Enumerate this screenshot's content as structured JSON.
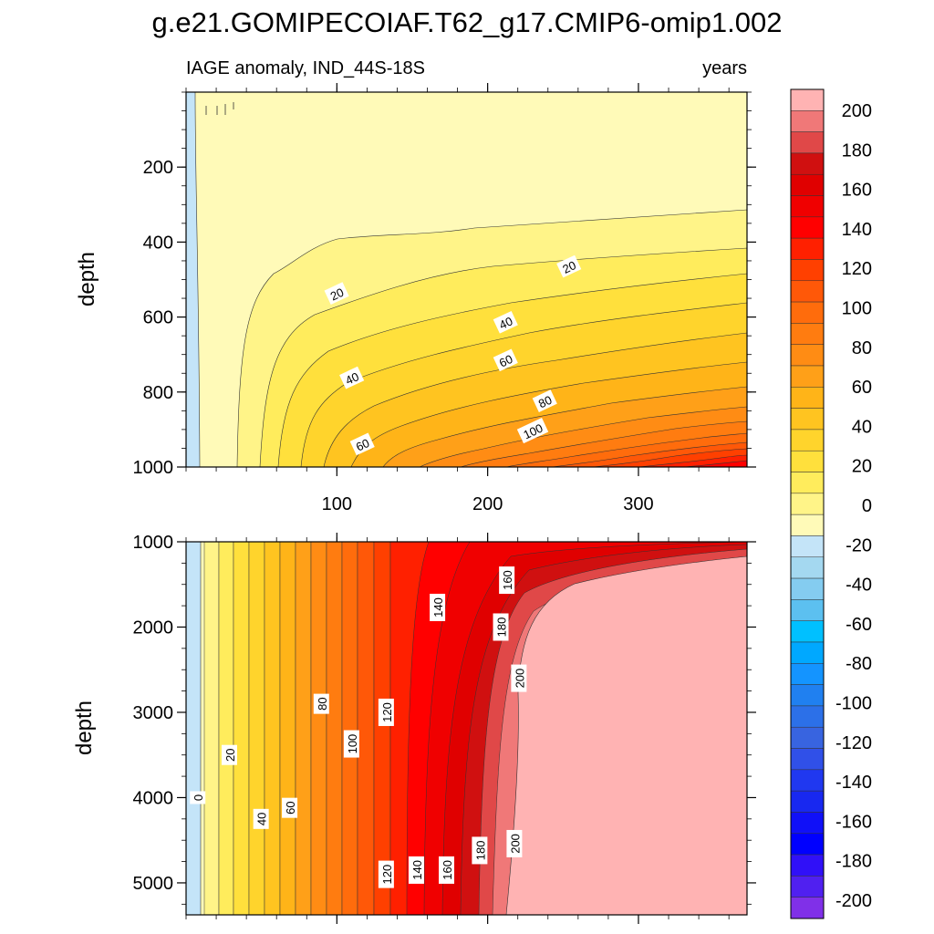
{
  "chart_data": {
    "type": "heatmap",
    "title": "g.e21.GOMIPECOIAF.T62_g17.CMIP6-omip1.002",
    "subtitle_left": "IAGE anomaly, IND_44S-18S",
    "subtitle_right": "years",
    "xlim": [
      0,
      372
    ],
    "x_ticks": [
      100,
      200,
      300
    ],
    "x_tick_labels": [
      "100",
      "200",
      "300"
    ],
    "contour_interval": 10,
    "panels": [
      {
        "name": "upper",
        "ylabel": "depth",
        "ylim": [
          0,
          1000
        ],
        "y_ticks": [
          200,
          400,
          600,
          800,
          1000
        ],
        "y_tick_labels": [
          "200",
          "400",
          "600",
          "800",
          "1000"
        ],
        "contour_labels": [
          {
            "text": "20",
            "x": 100,
            "z": 538
          },
          {
            "text": "20",
            "x": 254,
            "z": 466
          },
          {
            "text": "40",
            "x": 110,
            "z": 763
          },
          {
            "text": "40",
            "x": 212,
            "z": 615
          },
          {
            "text": "60",
            "x": 117,
            "z": 940
          },
          {
            "text": "60",
            "x": 212,
            "z": 716
          },
          {
            "text": "80",
            "x": 238,
            "z": 825
          },
          {
            "text": "100",
            "x": 230,
            "z": 904
          }
        ]
      },
      {
        "name": "lower",
        "ylabel": "depth",
        "ylim": [
          1000,
          5375
        ],
        "y_ticks": [
          1000,
          2000,
          3000,
          4000,
          5000
        ],
        "y_tick_labels": [
          "1000",
          "2000",
          "3000",
          "4000",
          "5000"
        ],
        "contour_labels": [
          {
            "text": "0",
            "x": 8,
            "z": 4000
          },
          {
            "text": "20",
            "x": 29,
            "z": 3500
          },
          {
            "text": "40",
            "x": 50,
            "z": 4250
          },
          {
            "text": "60",
            "x": 69,
            "z": 4120
          },
          {
            "text": "80",
            "x": 90,
            "z": 2900
          },
          {
            "text": "100",
            "x": 110,
            "z": 3370
          },
          {
            "text": "120",
            "x": 133,
            "z": 3000
          },
          {
            "text": "140",
            "x": 167,
            "z": 1770
          },
          {
            "text": "160",
            "x": 213,
            "z": 1450
          },
          {
            "text": "180",
            "x": 209,
            "z": 2000
          },
          {
            "text": "200",
            "x": 221,
            "z": 2600
          },
          {
            "text": "120",
            "x": 133,
            "z": 4900
          },
          {
            "text": "140",
            "x": 153,
            "z": 4850
          },
          {
            "text": "160",
            "x": 173,
            "z": 4850
          },
          {
            "text": "180",
            "x": 195,
            "z": 4620
          },
          {
            "text": "200",
            "x": 218,
            "z": 4540
          }
        ]
      }
    ],
    "colorbar": {
      "labels": [
        "200",
        "180",
        "160",
        "140",
        "120",
        "100",
        "80",
        "60",
        "40",
        "20",
        "0",
        "-20",
        "-40",
        "-60",
        "-80",
        "-100",
        "-120",
        "-140",
        "-160",
        "-180",
        "-200"
      ],
      "colors": [
        "#ffb3b3",
        "#f07878",
        "#e04848",
        "#d01010",
        "#e00000",
        "#f00000",
        "#ff0000",
        "#ff2000",
        "#ff4000",
        "#ff5808",
        "#ff6c0c",
        "#ff7c10",
        "#ff8c14",
        "#ffa018",
        "#ffb418",
        "#ffc420",
        "#ffd42c",
        "#ffe03c",
        "#ffec5c",
        "#fff488",
        "#fffab8",
        "#c4e4f8",
        "#a4d8f0",
        "#84ccf0",
        "#5cc0f0",
        "#00c0ff",
        "#00a8ff",
        "#1494ff",
        "#2080f0",
        "#2c70e8",
        "#3864e0",
        "#3050e8",
        "#2038f0",
        "#1828f0",
        "#1010f8",
        "#0000ff",
        "#3010f8",
        "#5020f0",
        "#8030e8"
      ]
    }
  }
}
